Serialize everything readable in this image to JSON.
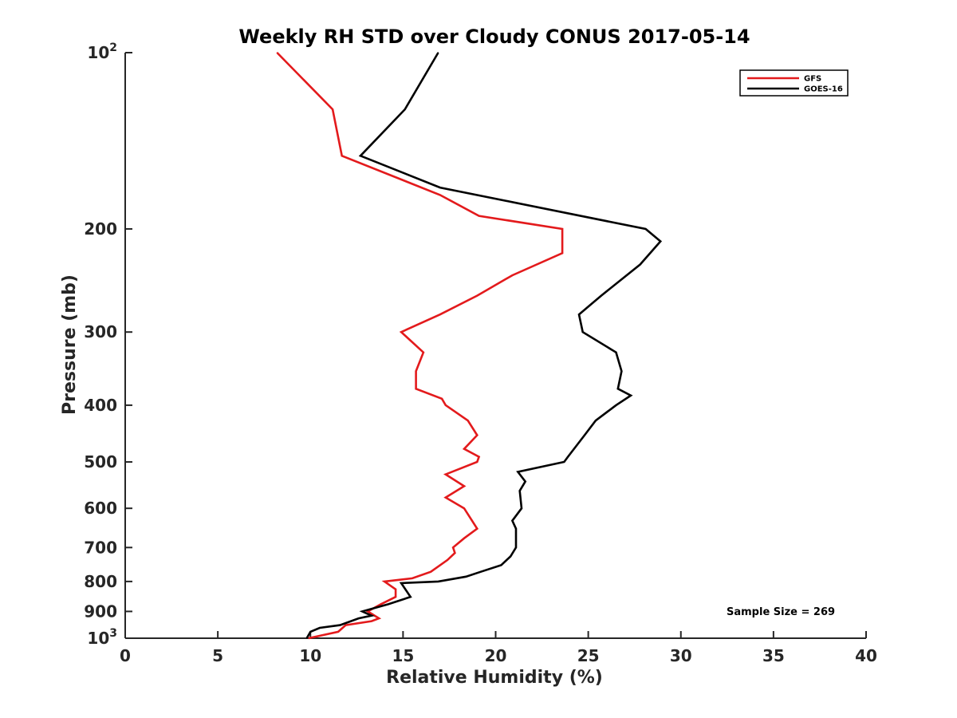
{
  "chart_data": {
    "type": "line",
    "title": "Weekly RH STD over Cloudy CONUS 2017-05-14",
    "xlabel": "Relative Humidity (%)",
    "ylabel": "Pressure (mb)",
    "xlim": [
      0,
      40
    ],
    "ylim": [
      100,
      1000
    ],
    "y_scale": "log",
    "y_reversed": true,
    "grid": false,
    "legend_position": "top-right",
    "x_ticks": [
      {
        "value": 0,
        "label": "0"
      },
      {
        "value": 5,
        "label": "5"
      },
      {
        "value": 10,
        "label": "10"
      },
      {
        "value": 15,
        "label": "15"
      },
      {
        "value": 20,
        "label": "20"
      },
      {
        "value": 25,
        "label": "25"
      },
      {
        "value": 30,
        "label": "30"
      },
      {
        "value": 35,
        "label": "35"
      },
      {
        "value": 40,
        "label": "40"
      }
    ],
    "y_ticks": [
      {
        "value": 100,
        "label": "10",
        "sup": "2"
      },
      {
        "value": 200,
        "label": "200",
        "sup": ""
      },
      {
        "value": 300,
        "label": "300",
        "sup": ""
      },
      {
        "value": 400,
        "label": "400",
        "sup": ""
      },
      {
        "value": 500,
        "label": "500",
        "sup": ""
      },
      {
        "value": 600,
        "label": "600",
        "sup": ""
      },
      {
        "value": 700,
        "label": "700",
        "sup": ""
      },
      {
        "value": 800,
        "label": "800",
        "sup": ""
      },
      {
        "value": 900,
        "label": "900",
        "sup": ""
      },
      {
        "value": 1000,
        "label": "10",
        "sup": "3"
      }
    ],
    "annotation": "Sample Size = 269",
    "series": [
      {
        "name": "GFS",
        "color": "#e31a1c",
        "points": [
          [
            8.2,
            100
          ],
          [
            11.2,
            125
          ],
          [
            11.7,
            150
          ],
          [
            17.0,
            175
          ],
          [
            19.1,
            190
          ],
          [
            23.6,
            200
          ],
          [
            23.6,
            220
          ],
          [
            20.9,
            240
          ],
          [
            19.0,
            260
          ],
          [
            17.0,
            280
          ],
          [
            14.9,
            300
          ],
          [
            16.1,
            325
          ],
          [
            15.7,
            350
          ],
          [
            15.7,
            375
          ],
          [
            17.1,
            390
          ],
          [
            17.3,
            400
          ],
          [
            18.5,
            425
          ],
          [
            19.0,
            450
          ],
          [
            18.3,
            475
          ],
          [
            19.1,
            490
          ],
          [
            19.0,
            500
          ],
          [
            17.3,
            525
          ],
          [
            18.3,
            550
          ],
          [
            17.3,
            575
          ],
          [
            18.3,
            600
          ],
          [
            19.0,
            650
          ],
          [
            18.3,
            675
          ],
          [
            17.7,
            700
          ],
          [
            17.8,
            715
          ],
          [
            17.4,
            735
          ],
          [
            16.5,
            770
          ],
          [
            15.5,
            790
          ],
          [
            14.0,
            800
          ],
          [
            14.6,
            825
          ],
          [
            14.6,
            850
          ],
          [
            13.8,
            875
          ],
          [
            13.1,
            900
          ],
          [
            13.7,
            925
          ],
          [
            13.3,
            935
          ],
          [
            11.9,
            950
          ],
          [
            11.5,
            975
          ],
          [
            9.9,
            1000
          ]
        ]
      },
      {
        "name": "GOES-16",
        "color": "#000000",
        "points": [
          [
            16.9,
            100
          ],
          [
            15.1,
            125
          ],
          [
            12.7,
            150
          ],
          [
            17.0,
            170
          ],
          [
            28.1,
            200
          ],
          [
            28.9,
            210
          ],
          [
            27.8,
            230
          ],
          [
            25.7,
            260
          ],
          [
            24.5,
            280
          ],
          [
            24.7,
            300
          ],
          [
            26.5,
            325
          ],
          [
            26.8,
            350
          ],
          [
            26.6,
            375
          ],
          [
            27.3,
            385
          ],
          [
            26.5,
            400
          ],
          [
            25.4,
            425
          ],
          [
            24.8,
            450
          ],
          [
            23.9,
            490
          ],
          [
            23.7,
            500
          ],
          [
            21.2,
            520
          ],
          [
            21.6,
            540
          ],
          [
            21.3,
            560
          ],
          [
            21.4,
            600
          ],
          [
            20.9,
            630
          ],
          [
            21.1,
            650
          ],
          [
            21.1,
            700
          ],
          [
            20.8,
            725
          ],
          [
            20.3,
            750
          ],
          [
            19.2,
            770
          ],
          [
            18.4,
            785
          ],
          [
            16.9,
            800
          ],
          [
            14.9,
            805
          ],
          [
            15.4,
            850
          ],
          [
            14.2,
            875
          ],
          [
            12.8,
            900
          ],
          [
            13.3,
            915
          ],
          [
            12.6,
            925
          ],
          [
            11.6,
            950
          ],
          [
            10.5,
            960
          ],
          [
            10.0,
            975
          ],
          [
            9.8,
            1000
          ]
        ]
      }
    ]
  }
}
